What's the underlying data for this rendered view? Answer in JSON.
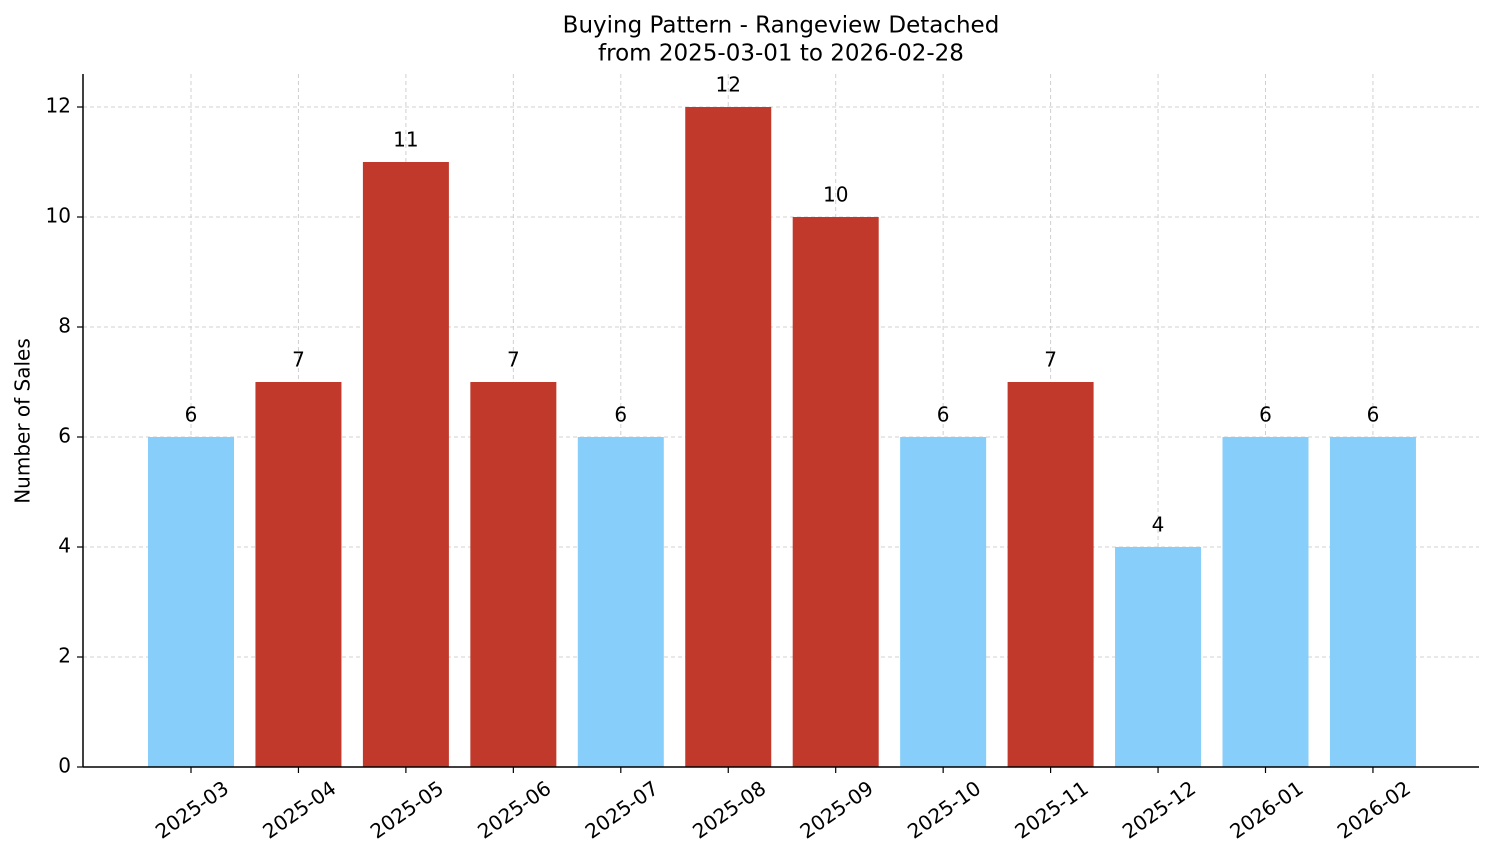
{
  "chart_data": {
    "type": "bar",
    "title": "Buying Pattern - Rangeview Detached",
    "subtitle": "from 2025-03-01 to 2026-02-28",
    "y_label": "Number of Sales",
    "categories": [
      "2025-03",
      "2025-04",
      "2025-05",
      "2025-06",
      "2025-07",
      "2025-08",
      "2025-09",
      "2025-10",
      "2025-11",
      "2025-12",
      "2026-01",
      "2026-02"
    ],
    "values": [
      6,
      7,
      11,
      7,
      6,
      12,
      10,
      6,
      7,
      4,
      6,
      6
    ],
    "colors": [
      "#87cefa",
      "#c0392b",
      "#c0392b",
      "#c0392b",
      "#87cefa",
      "#c0392b",
      "#c0392b",
      "#87cefa",
      "#c0392b",
      "#87cefa",
      "#87cefa",
      "#87cefa"
    ],
    "ylim": [
      0,
      12.6
    ],
    "yticks": [
      0,
      2,
      4,
      6,
      8,
      10,
      12
    ],
    "grid": true
  }
}
